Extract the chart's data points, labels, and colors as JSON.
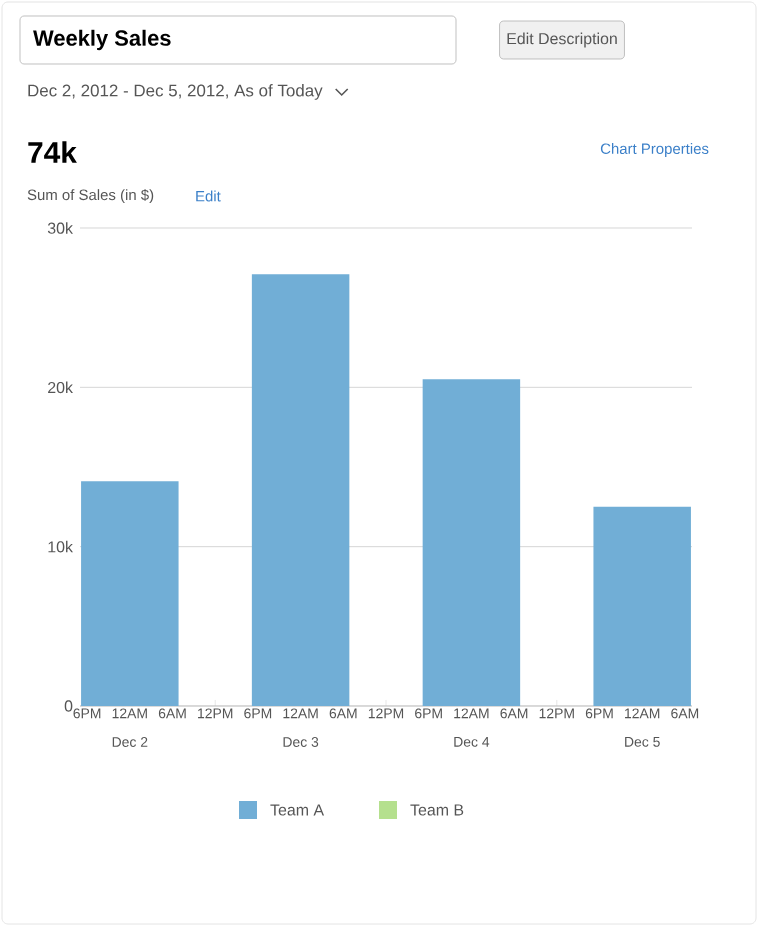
{
  "chart_data": {
    "type": "bar",
    "title": "Weekly Sales",
    "subtitle": "Dec 2, 2012 - Dec 5, 2012, As of Today",
    "ylabel": "Sum of Sales (in $)",
    "annotations": [
      "Edit Description",
      "74k",
      "Chart Properties",
      "Edit",
      {
        "text": "Dec 2",
        "x": "2012-12-02T00:00",
        "y": 0
      },
      {
        "text": "Dec 3",
        "x": "2012-12-03T00:00",
        "y": 0
      },
      {
        "text": "Dec 4",
        "x": "2012-12-04T00:00",
        "y": 0
      },
      {
        "text": "Dec 5",
        "x": "2012-12-05T00:00",
        "y": 0
      }
    ],
    "x": [
      "2012-12-02T00:00",
      "2012-12-03T00:00",
      "2012-12-04T00:00",
      "2012-12-05T00:00"
    ],
    "series": [
      {
        "name": "Team A",
        "color": "#71aed6",
        "values": [
          14100,
          27100,
          20500,
          12500
        ]
      },
      {
        "name": "Team B",
        "color": "#b5e08e",
        "values": [
          null,
          null,
          null,
          null
        ]
      }
    ],
    "xlim": [
      "2012-12-01T17:00",
      "2012-12-05T07:00"
    ],
    "xticks": [
      {
        "value": "2012-12-01T18:00",
        "label": "6PM"
      },
      {
        "value": "2012-12-02T00:00",
        "label": "12AM"
      },
      {
        "value": "2012-12-02T06:00",
        "label": "6AM"
      },
      {
        "value": "2012-12-02T12:00",
        "label": "12PM"
      },
      {
        "value": "2012-12-02T18:00",
        "label": "6PM"
      },
      {
        "value": "2012-12-03T00:00",
        "label": "12AM"
      },
      {
        "value": "2012-12-03T06:00",
        "label": "6AM"
      },
      {
        "value": "2012-12-03T12:00",
        "label": "12PM"
      },
      {
        "value": "2012-12-03T18:00",
        "label": "6PM"
      },
      {
        "value": "2012-12-04T00:00",
        "label": "12AM"
      },
      {
        "value": "2012-12-04T06:00",
        "label": "6AM"
      },
      {
        "value": "2012-12-04T12:00",
        "label": "12PM"
      },
      {
        "value": "2012-12-04T18:00",
        "label": "6PM"
      },
      {
        "value": "2012-12-05T00:00",
        "label": "12AM"
      },
      {
        "value": "2012-12-05T06:00",
        "label": "6AM"
      }
    ],
    "ylim": [
      0,
      30000
    ],
    "yticks": [
      0,
      {
        "value": 10000,
        "label": "10k"
      },
      {
        "value": 20000,
        "label": "20k"
      },
      {
        "value": 30000,
        "label": "30k"
      }
    ],
    "grid": "y",
    "legend": "bottom"
  }
}
